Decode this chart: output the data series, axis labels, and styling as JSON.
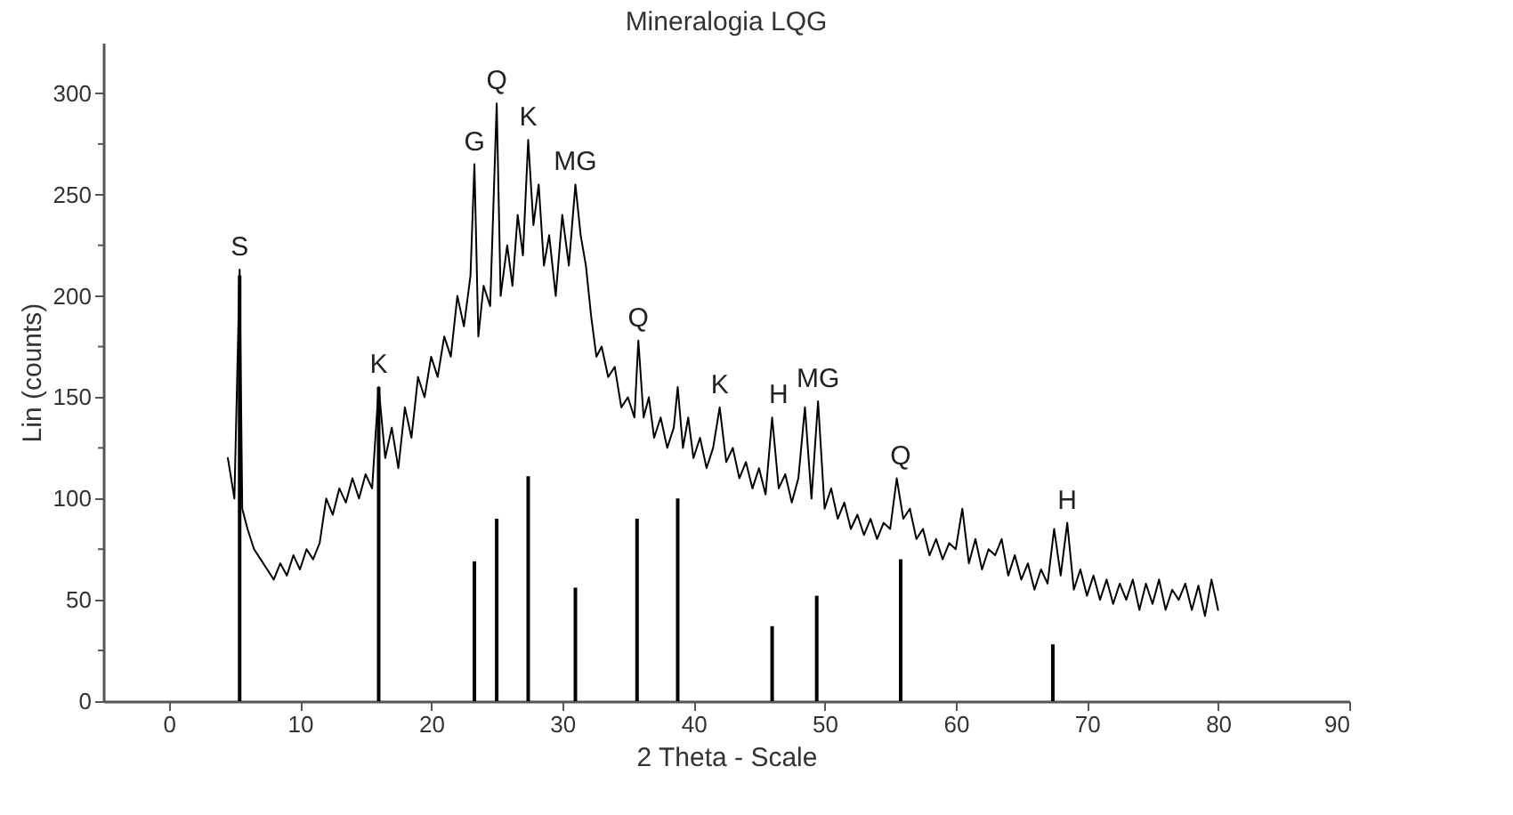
{
  "chart_data": {
    "type": "line",
    "title": "Mineralogia LQG",
    "xlabel": "2 Theta - Scale",
    "ylabel": "Lin (counts)",
    "xlim": [
      -5,
      90
    ],
    "xticks": [
      0,
      10,
      20,
      30,
      40,
      50,
      60,
      70,
      80,
      90
    ],
    "ylim": [
      0,
      325
    ],
    "yticks": [
      0,
      {
        "value": 25,
        "label": null
      },
      50,
      {
        "value": 75,
        "label": null
      },
      100,
      {
        "value": 125,
        "label": null
      },
      150,
      {
        "value": 175,
        "label": null
      },
      200,
      {
        "value": 225,
        "label": null
      },
      250,
      {
        "value": 275,
        "label": null
      },
      300
    ],
    "grid": false,
    "line_style": "solid",
    "marker": "none",
    "series": [
      {
        "color": "#000000",
        "x": [
          4.5,
          5,
          5.4,
          5.6,
          6,
          6.5,
          7,
          7.5,
          8,
          8.5,
          9,
          9.5,
          10,
          10.5,
          11,
          11.5,
          12,
          12.5,
          13,
          13.5,
          14,
          14.5,
          15,
          15.5,
          16,
          16.5,
          17,
          17.5,
          18,
          18.5,
          19,
          19.5,
          20,
          20.5,
          21,
          21.5,
          22,
          22.5,
          23,
          23.3,
          23.6,
          24,
          24.5,
          25,
          25.3,
          25.8,
          26.2,
          26.6,
          27,
          27.4,
          27.8,
          28.2,
          28.6,
          29,
          29.5,
          30,
          30.5,
          31,
          31.4,
          31.8,
          32.2,
          32.6,
          33,
          33.5,
          34,
          34.5,
          35,
          35.5,
          35.8,
          36.2,
          36.6,
          37,
          37.5,
          38,
          38.5,
          38.8,
          39.2,
          39.6,
          40,
          40.5,
          41,
          41.5,
          42,
          42.5,
          43,
          43.5,
          44,
          44.5,
          45,
          45.5,
          46,
          46.5,
          47,
          47.5,
          48,
          48.5,
          49,
          49.5,
          50,
          50.5,
          51,
          51.5,
          52,
          52.5,
          53,
          53.5,
          54,
          54.5,
          55,
          55.5,
          56,
          56.5,
          57,
          57.5,
          58,
          58.5,
          59,
          59.5,
          60,
          60.5,
          61,
          61.5,
          62,
          62.5,
          63,
          63.5,
          64,
          64.5,
          65,
          65.5,
          66,
          66.5,
          67,
          67.5,
          68,
          68.5,
          69,
          69.5,
          70,
          70.5,
          71,
          71.5,
          72,
          72.5,
          73,
          73.5,
          74,
          74.5,
          75,
          75.5,
          76,
          76.5,
          77,
          77.5,
          78,
          78.5,
          79,
          79.5,
          80
        ],
        "values": [
          120,
          100,
          213,
          95,
          85,
          75,
          70,
          65,
          60,
          68,
          62,
          72,
          65,
          75,
          70,
          78,
          100,
          92,
          105,
          98,
          110,
          100,
          112,
          105,
          155,
          120,
          135,
          115,
          145,
          130,
          160,
          150,
          170,
          160,
          180,
          170,
          200,
          185,
          210,
          265,
          180,
          205,
          195,
          295,
          200,
          225,
          205,
          240,
          220,
          277,
          235,
          255,
          215,
          230,
          200,
          240,
          215,
          255,
          230,
          215,
          190,
          170,
          175,
          160,
          165,
          145,
          150,
          140,
          178,
          140,
          150,
          130,
          140,
          125,
          135,
          155,
          125,
          140,
          120,
          130,
          115,
          125,
          145,
          118,
          125,
          110,
          118,
          105,
          115,
          102,
          140,
          105,
          112,
          98,
          110,
          145,
          100,
          148,
          95,
          105,
          90,
          98,
          85,
          92,
          82,
          90,
          80,
          88,
          85,
          110,
          90,
          95,
          80,
          85,
          72,
          80,
          70,
          78,
          75,
          95,
          68,
          80,
          65,
          75,
          72,
          80,
          62,
          72,
          60,
          68,
          55,
          65,
          58,
          85,
          62,
          88,
          55,
          65,
          52,
          62,
          50,
          60,
          48,
          58,
          50,
          60,
          45,
          58,
          48,
          60,
          45,
          55,
          50,
          58,
          45,
          57,
          42,
          60,
          45
        ]
      },
      {
        "type": "bar",
        "color": "#000000",
        "x": [
          5.4,
          16,
          23.3,
          25,
          27.4,
          31,
          35.7,
          38.8,
          46,
          49.4,
          55.8,
          67.4
        ],
        "values": [
          210,
          155,
          69,
          90,
          111,
          56,
          90,
          100,
          37,
          52,
          70,
          28
        ]
      }
    ],
    "annotations": [
      {
        "text": "S",
        "x": 5.4,
        "y": 213
      },
      {
        "text": "K",
        "x": 16,
        "y": 155
      },
      {
        "text": "G",
        "x": 23.3,
        "y": 265
      },
      {
        "text": "Q",
        "x": 25,
        "y": 295
      },
      {
        "text": "K",
        "x": 27.4,
        "y": 277
      },
      {
        "text": "MG",
        "x": 31,
        "y": 255
      },
      {
        "text": "Q",
        "x": 35.8,
        "y": 178
      },
      {
        "text": "K",
        "x": 42,
        "y": 145
      },
      {
        "text": "H",
        "x": 46.5,
        "y": 140
      },
      {
        "text": "MG",
        "x": 49.5,
        "y": 148
      },
      {
        "text": "Q",
        "x": 55.8,
        "y": 110
      },
      {
        "text": "H",
        "x": 68.5,
        "y": 88
      }
    ]
  }
}
